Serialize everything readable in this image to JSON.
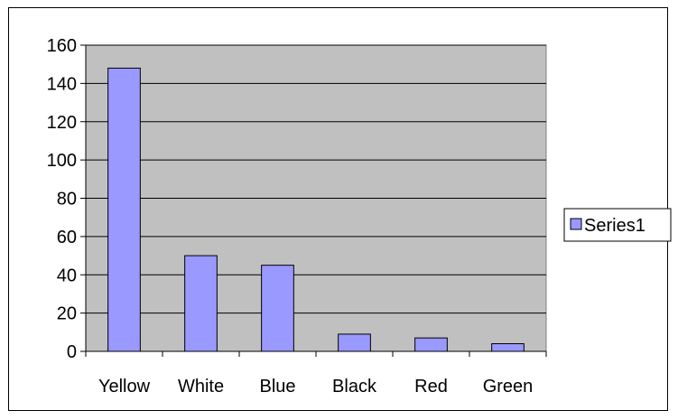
{
  "chart_data": {
    "type": "bar",
    "title": "",
    "xlabel": "",
    "ylabel": "",
    "categories": [
      "Yellow",
      "White",
      "Blue",
      "Black",
      "Red",
      "Green"
    ],
    "series": [
      {
        "name": "Series1",
        "values": [
          148,
          50,
          45,
          9,
          7,
          4
        ]
      }
    ],
    "ylim": [
      0,
      160
    ],
    "yticks": [
      "0",
      "20",
      "40",
      "60",
      "80",
      "100",
      "120",
      "140",
      "160"
    ],
    "grid": true,
    "legend_position": "right",
    "colors": {
      "bar_fill": "#9999ff",
      "plot_background": "#c0c0c0",
      "gridline": "#000000"
    }
  }
}
